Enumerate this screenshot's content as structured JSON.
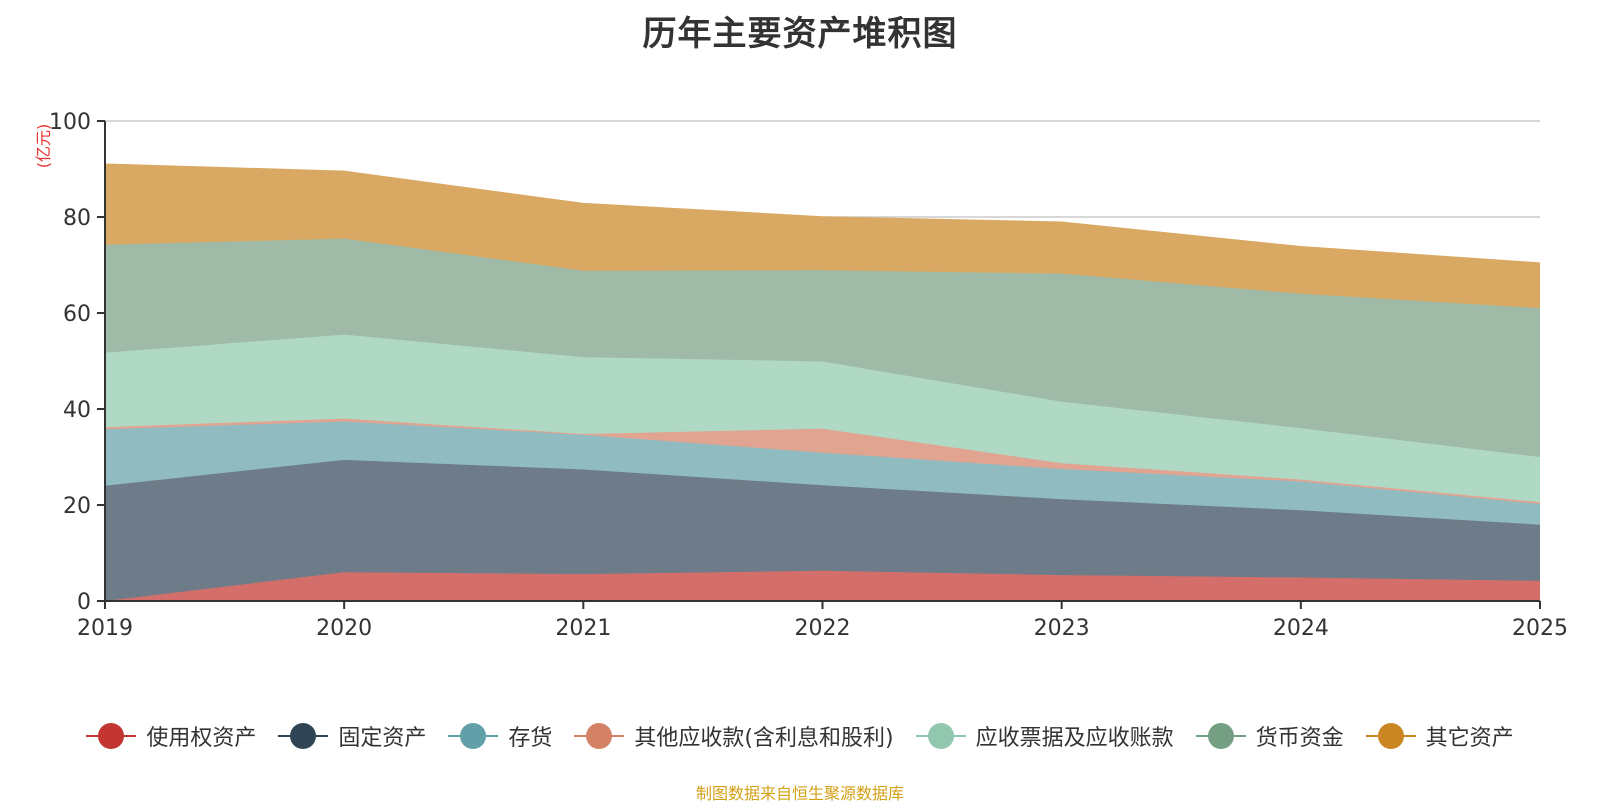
{
  "chart_data": {
    "type": "area",
    "stacked": true,
    "title": "历年主要资产堆积图",
    "unit_label": "(亿元)",
    "categories": [
      "2019",
      "2020",
      "2021",
      "2022",
      "2023",
      "2024",
      "2025"
    ],
    "ylim": [
      0,
      100
    ],
    "yticks": [
      0,
      20,
      40,
      60,
      80,
      100
    ],
    "grid": true,
    "legend_position": "bottom",
    "series": [
      {
        "name": "使用权资产",
        "color": "#c23531",
        "fill": "#d46e6b",
        "values": [
          0.0,
          6.0,
          5.6,
          6.3,
          5.4,
          4.9,
          4.2
        ]
      },
      {
        "name": "固定资产",
        "color": "#2f4554",
        "fill": "#6d7c88",
        "values": [
          24.0,
          23.4,
          21.8,
          17.8,
          15.8,
          14.0,
          11.7
        ]
      },
      {
        "name": "存货",
        "color": "#61a0a8",
        "fill": "#90bbc1",
        "values": [
          11.8,
          8.0,
          7.2,
          6.8,
          6.3,
          6.0,
          4.3
        ]
      },
      {
        "name": "其他应收款(含利息和股利)",
        "color": "#d48265",
        "fill": "#e0a491",
        "values": [
          0.4,
          0.6,
          0.2,
          5.0,
          1.2,
          0.4,
          0.4
        ]
      },
      {
        "name": "应收票据及应收账款",
        "color": "#91c7ae",
        "fill": "#b0d9c5",
        "values": [
          15.5,
          17.5,
          16.0,
          14.0,
          12.8,
          10.7,
          9.4
        ]
      },
      {
        "name": "货币资金",
        "color": "#749f83",
        "fill": "#9fbba7",
        "values": [
          22.5,
          20.0,
          18.0,
          19.0,
          26.7,
          28.0,
          31.0
        ]
      },
      {
        "name": "其它资产",
        "color": "#ca8622",
        "fill": "#d9a862",
        "values": [
          16.8,
          14.0,
          14.0,
          11.1,
          10.7,
          9.8,
          9.4
        ]
      }
    ]
  },
  "footer": {
    "source": "制图数据来自恒生聚源数据库"
  }
}
